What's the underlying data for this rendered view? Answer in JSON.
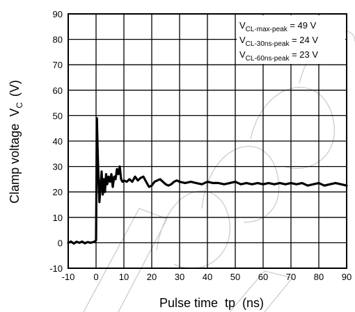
{
  "chart_data": {
    "type": "line",
    "xlabel": "Pulse time  tp  (ns)",
    "ylabel": "Clamp voltage  V",
    "ylabel_sub": "C",
    "ylabel_unit": "(V)",
    "xlim": [
      -10,
      90
    ],
    "ylim": [
      -10,
      90
    ],
    "xticks": [
      -10,
      0,
      10,
      20,
      30,
      40,
      50,
      60,
      70,
      80,
      90
    ],
    "yticks": [
      -10,
      0,
      10,
      20,
      30,
      40,
      50,
      60,
      70,
      80,
      90
    ],
    "grid": true,
    "annotations": [
      {
        "main": "V",
        "sub": "CL-max-peak",
        "value": " = 49 V"
      },
      {
        "main": "V",
        "sub": "CL-30ns-peak",
        "value": " = 24 V"
      },
      {
        "main": "V",
        "sub": "CL-60ns-peak",
        "value": " = 23 V"
      }
    ],
    "series": [
      {
        "color": "#000000",
        "x": [
          -10,
          -9,
          -8,
          -7,
          -6,
          -5,
          -4,
          -3,
          -2,
          -1,
          -0.5,
          0,
          0.3,
          0.6,
          0.9,
          1.2,
          1.6,
          2.0,
          2.4,
          2.8,
          3.2,
          3.6,
          4.0,
          4.5,
          5.0,
          5.5,
          6.0,
          6.5,
          7.0,
          7.5,
          8.0,
          8.5,
          9.0,
          9.5,
          10.0,
          11,
          12,
          13,
          14,
          15,
          16,
          17,
          18,
          19,
          20,
          21,
          22,
          23,
          24,
          25,
          26,
          27,
          28,
          29,
          30,
          32,
          34,
          36,
          38,
          40,
          42,
          44,
          46,
          48,
          50,
          52,
          54,
          56,
          58,
          60,
          62,
          64,
          66,
          68,
          70,
          72,
          74,
          76,
          78,
          80,
          82,
          84,
          86,
          88,
          90
        ],
        "values": [
          0,
          0.5,
          -0.3,
          0.4,
          0,
          0.5,
          -0.2,
          0.3,
          0,
          0.3,
          0.5,
          1,
          49,
          35,
          25,
          16,
          22,
          28,
          19,
          25,
          20,
          27,
          23,
          26,
          24,
          27,
          22,
          26,
          25,
          29,
          27,
          30,
          25,
          24,
          24.5,
          24,
          25,
          24,
          26,
          24.5,
          25.5,
          26,
          24,
          22,
          22.5,
          24,
          24.5,
          25,
          24,
          23,
          22.5,
          23,
          24,
          24.5,
          24,
          23.5,
          24,
          23.5,
          23,
          24,
          23.5,
          23.5,
          23,
          23.5,
          24,
          23,
          23.5,
          23,
          23.5,
          23,
          23.5,
          23,
          23.5,
          23,
          23.5,
          23,
          23.5,
          22.5,
          23,
          23.5,
          22.5,
          23,
          23.5,
          23,
          22.5
        ]
      }
    ]
  }
}
